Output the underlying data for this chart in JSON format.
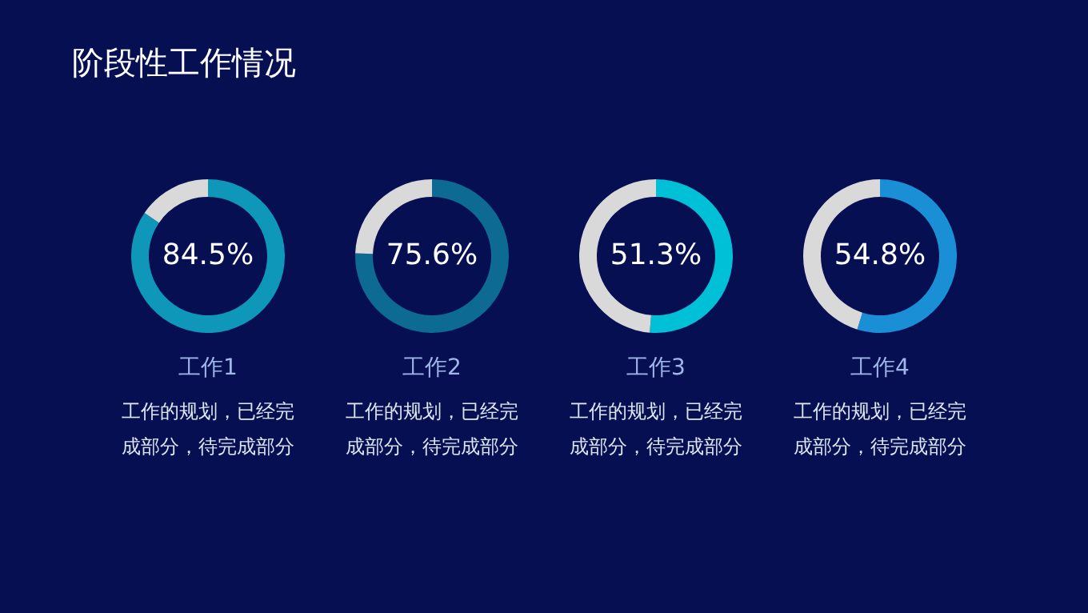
{
  "chart_data": [
    {
      "type": "donut",
      "title": "阶段性工作情况",
      "categories": [
        null,
        null
      ],
      "values": [
        84.5,
        15.5
      ],
      "colors": [
        "#0e97b8",
        "#d9d9d9"
      ],
      "value_labels": [
        "84.5%",
        null
      ],
      "xlabel": "工作1",
      "annotations": [
        "工作的规划，已经完成部分，待完成部分"
      ]
    },
    {
      "type": "donut",
      "categories": [
        null,
        null
      ],
      "values": [
        75.6,
        24.4
      ],
      "colors": [
        "#0d6a92",
        "#d9d9d9"
      ],
      "value_labels": [
        "75.6%",
        null
      ],
      "xlabel": "工作2",
      "annotations": [
        "工作的规划，已经完成部分，待完成部分"
      ]
    },
    {
      "type": "donut",
      "categories": [
        null,
        null
      ],
      "values": [
        51.3,
        48.7
      ],
      "colors": [
        "#00c0d8",
        "#d9d9d9"
      ],
      "value_labels": [
        "51.3%",
        null
      ],
      "xlabel": "工作3",
      "annotations": [
        "工作的规划，已经完成部分，待完成部分"
      ]
    },
    {
      "type": "donut",
      "categories": [
        null,
        null
      ],
      "values": [
        54.8,
        45.2
      ],
      "colors": [
        "#1a8fd6",
        "#d9d9d9"
      ],
      "value_labels": [
        "54.8%",
        null
      ],
      "xlabel": "工作4",
      "annotations": [
        "工作的规划，已经完成部分，待完成部分"
      ]
    }
  ]
}
